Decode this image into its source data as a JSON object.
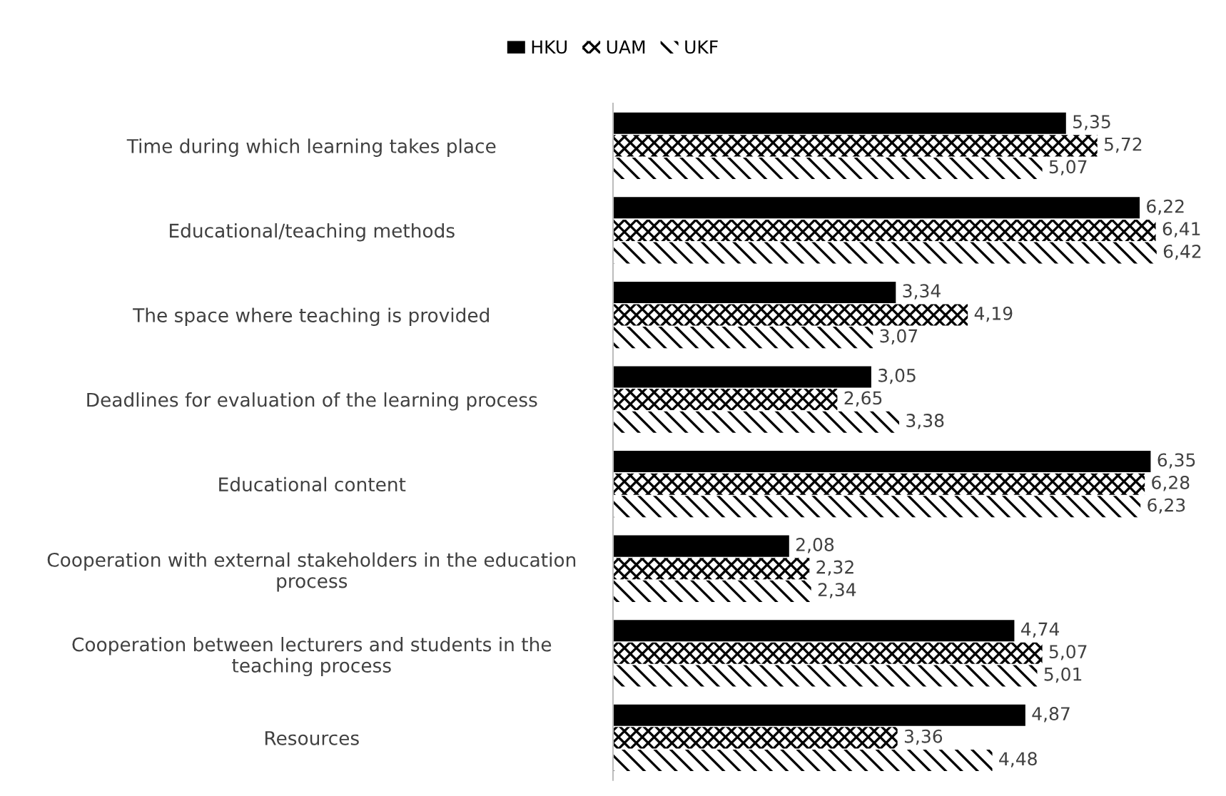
{
  "chart_data": {
    "type": "bar",
    "orientation": "horizontal",
    "categories": [
      "Time during which learning takes place",
      "Educational/teaching methods",
      "The space where teaching is provided",
      "Deadlines for evaluation of the learning process",
      "Educational content",
      "Cooperation with external stakeholders in the education process",
      "Cooperation between lecturers and students in the teaching process",
      "Resources"
    ],
    "series": [
      {
        "name": "HKU",
        "color": "#000000",
        "values": [
          5.35,
          6.22,
          3.34,
          3.05,
          6.35,
          2.08,
          4.74,
          4.87
        ],
        "value_labels": [
          "5,35",
          "6,22",
          "3,34",
          "3,05",
          "6,35",
          "2,08",
          "4,74",
          "4,87"
        ]
      },
      {
        "name": "UAM",
        "color": "#000000",
        "values": [
          5.72,
          6.41,
          4.19,
          2.65,
          6.28,
          2.32,
          5.07,
          3.36
        ],
        "value_labels": [
          "5,72",
          "6,41",
          "4,19",
          "2,65",
          "6,28",
          "2,32",
          "5,07",
          "3,36"
        ]
      },
      {
        "name": "UKF",
        "color": "#000000",
        "values": [
          5.07,
          6.42,
          3.07,
          3.38,
          6.23,
          2.34,
          5.01,
          4.48
        ],
        "value_labels": [
          "5,07",
          "6,42",
          "3,07",
          "3,38",
          "6,23",
          "2,34",
          "5,01",
          "4,48"
        ]
      }
    ],
    "legend": "top",
    "grid": false,
    "tick_labels": "y"
  }
}
